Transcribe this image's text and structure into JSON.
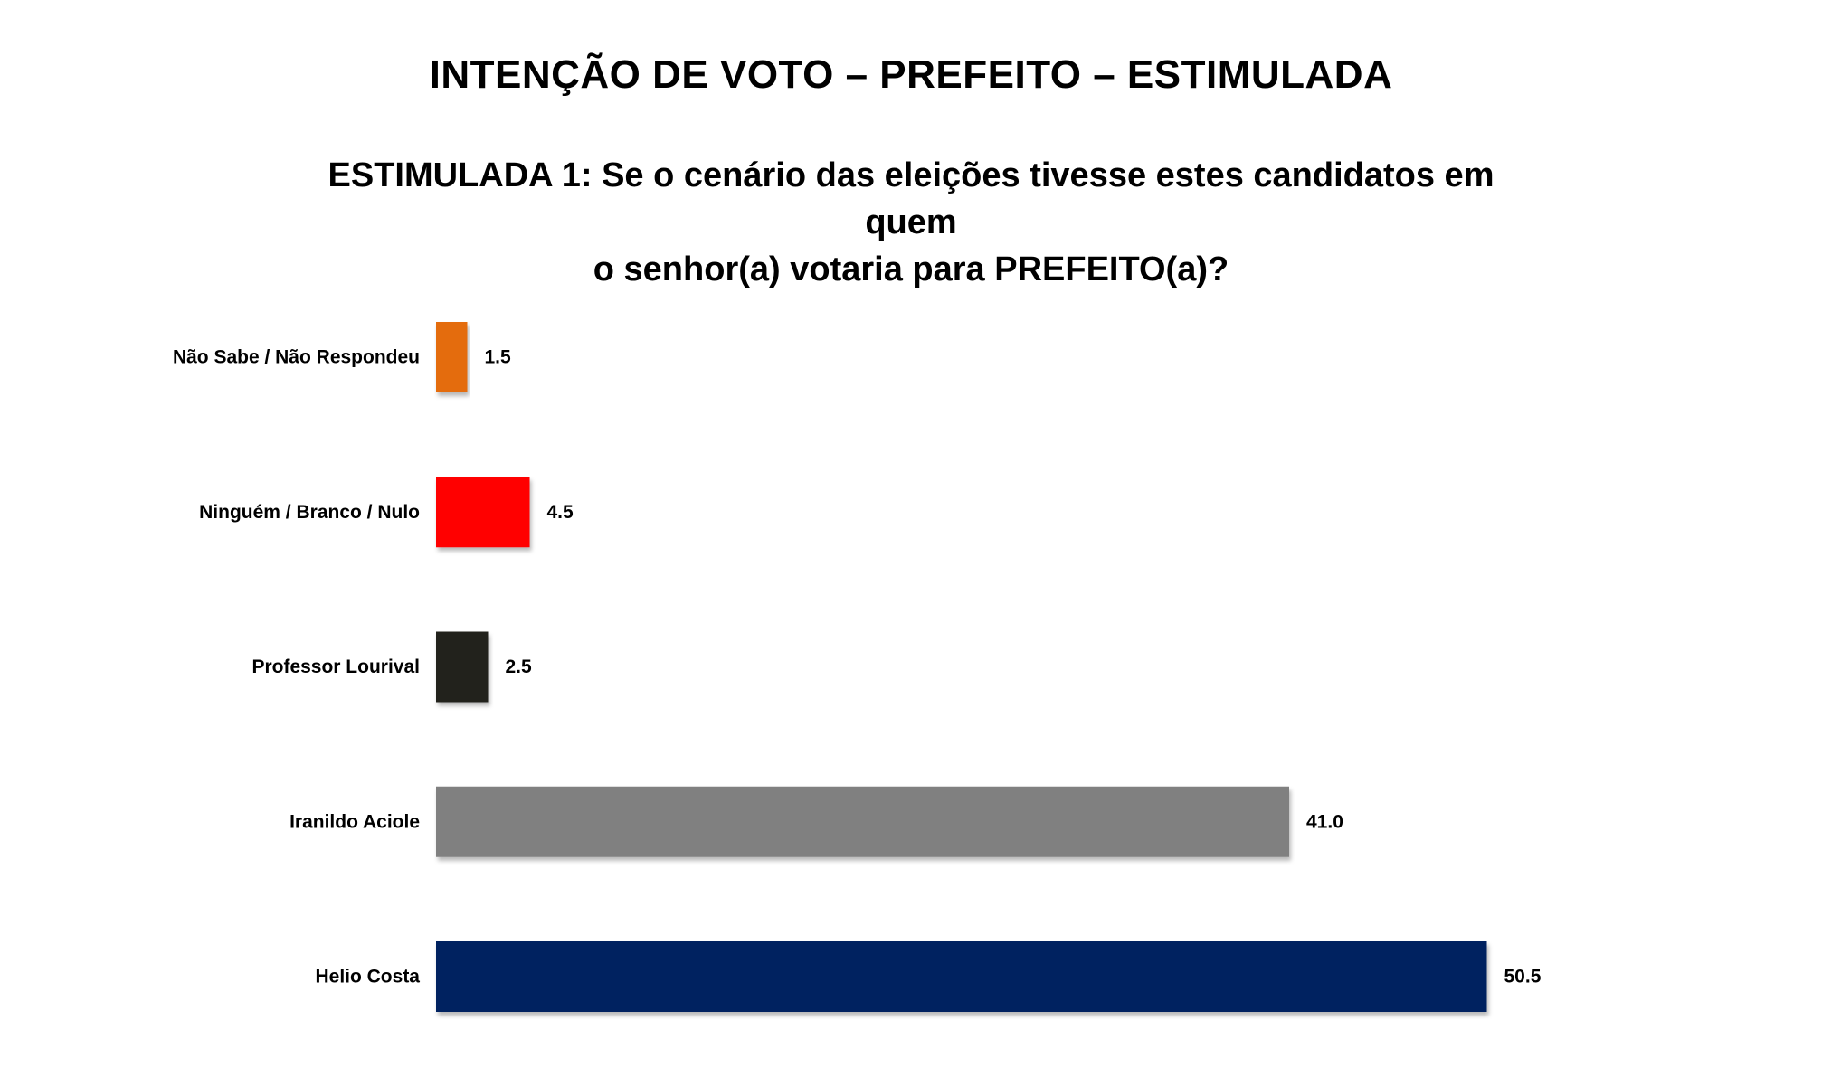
{
  "title": "INTENÇÃO DE VOTO – PREFEITO – ESTIMULADA",
  "subtitle_line1": "ESTIMULADA 1: Se o cenário das eleições tivesse estes candidatos em quem",
  "subtitle_line2": "o senhor(a) votaria para PREFEITO(a)?",
  "chart_data": {
    "type": "bar",
    "orientation": "horizontal",
    "categories": [
      "Não Sabe / Não Respondeu",
      "Ninguém / Branco / Nulo",
      "Professor Lourival",
      "Iranildo Aciole",
      "Helio Costa"
    ],
    "values": [
      1.5,
      4.5,
      2.5,
      41.0,
      50.5
    ],
    "value_labels": [
      "1.5",
      "4.5",
      "2.5",
      "41.0",
      "50.5"
    ],
    "colors": [
      "#E46C0A",
      "#FF0000",
      "#23211A",
      "#808080",
      "#002060"
    ],
    "xlim": [
      0,
      55
    ],
    "grid": false,
    "legend": "none"
  }
}
